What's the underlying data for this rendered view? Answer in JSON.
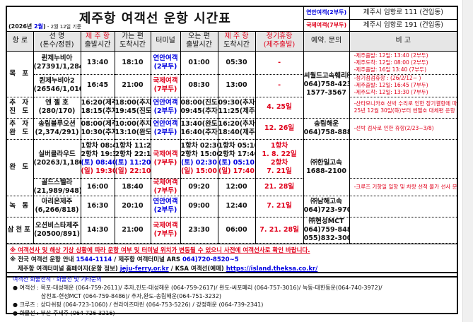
{
  "header": {
    "title": "제주항 여객선 운항 시간표",
    "year_prefix": "(2026년 ",
    "month": "2월",
    "year_suffix": ")",
    "basis": " - 2월 12일 기준",
    "terminals": [
      {
        "name": "연안여객(2부두)",
        "address": "제주시 임항로 111 (건입동)",
        "color": "#0000e0"
      },
      {
        "name": "국제여객(7부두)",
        "address": "제주시 임항로 191 (건입동)",
        "color": "#e0001b"
      }
    ]
  },
  "columns": [
    [
      "항 로"
    ],
    [
      "선 명",
      "(톤수/정원)"
    ],
    [
      "제 주 항",
      "출발시간"
    ],
    [
      "가는 편",
      "도착시간"
    ],
    [
      "터미널"
    ],
    [
      "오는 편",
      "출발시간"
    ],
    [
      "제 주 항",
      "도착시간"
    ],
    [
      "정기휴항",
      "(제주출발)"
    ],
    [
      "예약. 문의"
    ],
    [
      "비 고"
    ]
  ],
  "rows": [
    {
      "route": [
        "목 포"
      ],
      "route_span": 2,
      "ship": [
        "퀸제누비아",
        "(27391/1,284)"
      ],
      "dep": [
        "13:40"
      ],
      "arr": [
        "18:10"
      ],
      "terminal": [
        "연안여객",
        "(2부두)"
      ],
      "tcolor": "blue",
      "rdep": [
        "01:00"
      ],
      "rarr": [
        "05:30"
      ],
      "holiday": [
        "-"
      ],
      "res": [
        "씨월드고속훼리㈜",
        "064)758-4234",
        "1577-3567"
      ],
      "res_span": 3,
      "remarks": [
        "-제주출발: 12일: 13:40 (2부두)",
        "-제주도착: 12일: 08:00 (2부두)",
        "-제주출발: 16일 13:40 (7부두)"
      ]
    },
    {
      "ship": [
        "퀸제누비아2",
        "(26546/1,010)"
      ],
      "dep": [
        "16:45"
      ],
      "arr": [
        "21:00"
      ],
      "terminal": [
        "국제여객",
        "(7부두)"
      ],
      "tcolor": "red",
      "rdep": [
        "08:30"
      ],
      "rarr": [
        "13:00"
      ],
      "holiday": [
        "-"
      ],
      "remarks": [
        "-정기점검휴항 : (26/2/12~ )",
        "-제주출발: 12일: 16:45 (7부두)",
        "-제주도착: 12일: 13:30 (7부두)"
      ]
    },
    {
      "route": [
        "추 자",
        "진 도"
      ],
      "ship": [
        "엔 젤 호",
        "(280/170)"
      ],
      "dep": [
        "16:20(제주)",
        "18:15(추자)"
      ],
      "arr": [
        "18:00(추자)",
        "19:45(진도)"
      ],
      "terminal": [
        "연안여객",
        "(2부두)"
      ],
      "tcolor": "blue",
      "rdep": [
        "08:00(진도)",
        "09:45(추자)"
      ],
      "rarr": [
        "09:30(추자)",
        "11:25(제주)"
      ],
      "holiday": [
        "4. 25일"
      ],
      "remarks": [
        "-산타모니카호 선박 수리로 인한 장기결항에 따라",
        "25년 12월 30일(화)부터 엔젤호 대체편 운항"
      ]
    },
    {
      "route": [
        "추 자",
        "완 도"
      ],
      "ship": [
        "송림블루오션",
        "(2,374/291)"
      ],
      "dep": [
        "08:00(제주)",
        "10:30(추자)"
      ],
      "arr": [
        "10:00(추자)",
        "13:10(완도)"
      ],
      "terminal": [
        "연안여객",
        "(2부두)"
      ],
      "tcolor": "blue",
      "rdep": [
        "13:40(완도)",
        "16:40(추자)"
      ],
      "rarr": [
        "16:20(추자)",
        "18:40(제주)"
      ],
      "holiday": [
        "12. 26일"
      ],
      "res": [
        "송림해운",
        "064)758-8889"
      ],
      "remarks": [
        "-선박 검사로 인한 휴항(2/23~3/8)"
      ]
    },
    {
      "route": [
        "완 도"
      ],
      "route_span": 2,
      "ship": [
        "실버클라우드",
        "(20263/1,180)"
      ],
      "dep": [
        "1항차 08:40",
        "2항차 19:30",
        "(토) 08:40",
        "(일) 19:30"
      ],
      "arr": [
        "1항차 11:20",
        "2항차 22:10",
        "(토) 11:20",
        "(일) 22:10"
      ],
      "terminal": [
        "국제여객",
        "(7부두)"
      ],
      "tcolor": "red",
      "rdep": [
        "1항차 02:30",
        "2항차 15:00",
        "(토) 02:30",
        "(일) 15:00"
      ],
      "rarr": [
        "1항차 05:10",
        "2항차 17:40",
        "(토) 05:10",
        "(일) 17:40"
      ],
      "holiday": [
        "1항차",
        "1. 8. 22일",
        "2항차",
        "7. 21일"
      ],
      "res": [
        "㈜한일고속",
        "1688-2100"
      ],
      "res_span": 2,
      "remarks": []
    },
    {
      "ship": [
        "골드스텔라",
        "(21,989/948)"
      ],
      "dep": [
        "16:00"
      ],
      "arr": [
        "18:40"
      ],
      "terminal": [
        "국제여객",
        "(7부두)"
      ],
      "tcolor": "red",
      "rdep": [
        "09:20"
      ],
      "rarr": [
        "12:00"
      ],
      "holiday": [
        "21. 28일"
      ],
      "remarks": [
        "-크루즈 기항일 일항 및 차량 선적 불가 선사 문의"
      ]
    },
    {
      "route": [
        "녹 동"
      ],
      "ship": [
        "아리온제주",
        "(6,266/818)"
      ],
      "dep": [
        "16:30"
      ],
      "arr": [
        "20:10"
      ],
      "terminal": [
        "연안여객",
        "(2부두)"
      ],
      "tcolor": "blue",
      "rdep": [
        "09:00"
      ],
      "rarr": [
        "12:40"
      ],
      "holiday": [
        "7. 21일"
      ],
      "res": [
        "㈜남해고속",
        "064)723-9700"
      ],
      "remarks": []
    },
    {
      "route": [
        "삼천포"
      ],
      "ship": [
        "오션비스타제주",
        "(20500/891)"
      ],
      "dep": [
        "14:30"
      ],
      "arr": [
        "21:00"
      ],
      "terminal": [
        "국제여객",
        "(7부두)"
      ],
      "tcolor": "red",
      "rdep": [
        "23:30"
      ],
      "rarr": [
        "06:00"
      ],
      "holiday": [
        "7. 21. 28일"
      ],
      "res": [
        "㈜현성MCT",
        "064)759-8486",
        "055)832-3001"
      ],
      "remarks": []
    }
  ],
  "notes": {
    "warning": "※ 여객선사 및 해상 기상 상황에 따라 운항 여부 및 터미널 위치가 변동될 수 있으니 사전에 여객선사로 확인 바랍니다.",
    "line2_a": "※ 전국 여객선 운항 안내 ",
    "line2_phone": "1544-1114",
    "line2_b": " / 제주항 여객터미널 ARS ",
    "line2_ars": "064)720-8520~5",
    "line3_a": "제주항 여객터미널 홈페이지(운항 정보) ",
    "link1": "jeju-ferry.or.kr",
    "line3_b": " / KSA 여객선(예매) ",
    "link2": "https://island.theksa.co.kr/"
  },
  "contacts": {
    "title": "여객선 화물선적 · 화물선 및 기타문의",
    "lines": [
      "● 여객선 : 목포-대성해운 (064-759-2611)/ 추자,진도-대성해운 (064-759-2617)/ 완도-씨포페리 (064-757-3016)/ 녹동-대한동운(064-740-3972)/",
      "　　　　　삼천포-현성MCT (064-759-8486)/ 추자,완도-송림해운(064-751-3232)",
      "● 크루즈 : 상다쉬핑 (064-723-1060) / 썬라이즈마린 (064-753-5226) / 강정해운 (064-739-2341)",
      "● 화물선 : 부산-주세주 (064-726-3216)"
    ]
  }
}
